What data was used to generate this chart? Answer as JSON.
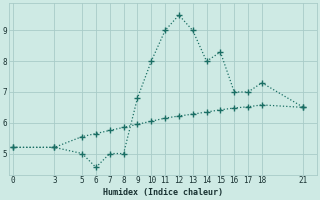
{
  "xlabel": "Humidex (Indice chaleur)",
  "bg_color": "#ceeae4",
  "grid_color": "#a8ccc8",
  "line_color": "#1a6e64",
  "line1_x": [
    0,
    3,
    5,
    6,
    7,
    8,
    9,
    10,
    11,
    12,
    13,
    14,
    15,
    16,
    17,
    18,
    21
  ],
  "line1_y": [
    5.2,
    5.2,
    5.0,
    4.55,
    5.0,
    5.0,
    6.8,
    8.0,
    9.0,
    9.5,
    9.0,
    8.0,
    8.3,
    7.0,
    7.0,
    7.3,
    6.5
  ],
  "line2_x": [
    0,
    3,
    5,
    6,
    7,
    8,
    9,
    10,
    11,
    12,
    13,
    14,
    15,
    16,
    17,
    18,
    21
  ],
  "line2_y": [
    5.2,
    5.2,
    5.55,
    5.65,
    5.75,
    5.85,
    5.95,
    6.05,
    6.15,
    6.22,
    6.28,
    6.35,
    6.42,
    6.48,
    6.52,
    6.58,
    6.5
  ],
  "xticks": [
    0,
    3,
    5,
    6,
    7,
    8,
    9,
    10,
    11,
    12,
    13,
    14,
    15,
    16,
    17,
    18,
    21
  ],
  "yticks": [
    5,
    6,
    7,
    8,
    9
  ],
  "xlim": [
    -0.3,
    22
  ],
  "ylim": [
    4.3,
    9.9
  ]
}
